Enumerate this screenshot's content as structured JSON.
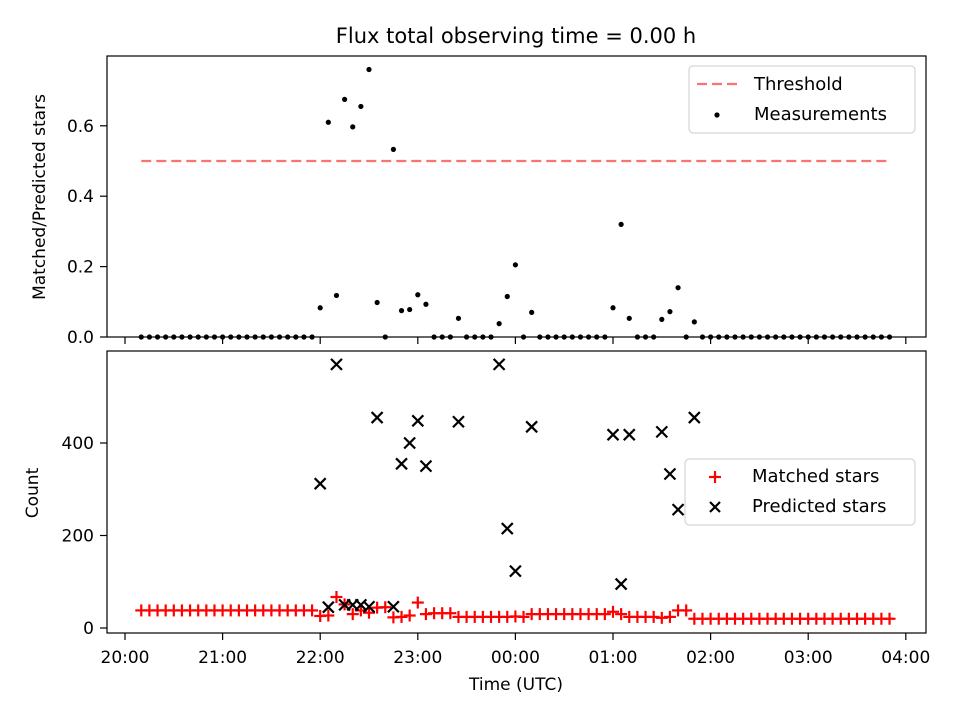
{
  "title": "Flux total observing time = 0.00 h",
  "chart_data": [
    {
      "type": "scatter",
      "ylabel": "Matched/Predicted stars",
      "xlabel": "",
      "xlim": [
        "20:00",
        "04:00"
      ],
      "ylim": [
        0,
        0.8
      ],
      "yticks": [
        0.0,
        0.2,
        0.4,
        0.6
      ],
      "ytick_labels": [
        "0.0",
        "0.2",
        "0.4",
        "0.6"
      ],
      "legend": "top-right",
      "threshold": {
        "name": "Threshold",
        "value": 0.5,
        "x_start": "20:10",
        "x_end": "03:50",
        "color": "#ff7070",
        "style": "dashed"
      },
      "measurements": {
        "name": "Measurements",
        "color": "#000000",
        "points": [
          [
            "20:10",
            0
          ],
          [
            "20:15",
            0
          ],
          [
            "20:20",
            0
          ],
          [
            "20:25",
            0
          ],
          [
            "20:30",
            0
          ],
          [
            "20:35",
            0
          ],
          [
            "20:40",
            0
          ],
          [
            "20:45",
            0
          ],
          [
            "20:50",
            0
          ],
          [
            "20:55",
            0
          ],
          [
            "21:00",
            0
          ],
          [
            "21:05",
            0
          ],
          [
            "21:10",
            0
          ],
          [
            "21:15",
            0
          ],
          [
            "21:20",
            0
          ],
          [
            "21:25",
            0
          ],
          [
            "21:30",
            0
          ],
          [
            "21:35",
            0
          ],
          [
            "21:40",
            0
          ],
          [
            "21:45",
            0
          ],
          [
            "21:50",
            0
          ],
          [
            "21:55",
            0
          ],
          [
            "22:00",
            0.083
          ],
          [
            "22:05",
            0.61
          ],
          [
            "22:10",
            0.118
          ],
          [
            "22:15",
            0.675
          ],
          [
            "22:20",
            0.597
          ],
          [
            "22:25",
            0.655
          ],
          [
            "22:30",
            0.76
          ],
          [
            "22:35",
            0.098
          ],
          [
            "22:40",
            0
          ],
          [
            "22:45",
            0.533
          ],
          [
            "22:50",
            0.075
          ],
          [
            "22:55",
            0.078
          ],
          [
            "23:00",
            0.12
          ],
          [
            "23:05",
            0.093
          ],
          [
            "23:10",
            0
          ],
          [
            "23:15",
            0
          ],
          [
            "23:20",
            0
          ],
          [
            "23:25",
            0.053
          ],
          [
            "23:30",
            0
          ],
          [
            "23:35",
            0
          ],
          [
            "23:40",
            0
          ],
          [
            "23:45",
            0
          ],
          [
            "23:50",
            0.038
          ],
          [
            "23:55",
            0.115
          ],
          [
            "00:00",
            0.205
          ],
          [
            "00:05",
            0
          ],
          [
            "00:10",
            0.07
          ],
          [
            "00:15",
            0
          ],
          [
            "00:20",
            0
          ],
          [
            "00:25",
            0
          ],
          [
            "00:30",
            0
          ],
          [
            "00:35",
            0
          ],
          [
            "00:40",
            0
          ],
          [
            "00:45",
            0
          ],
          [
            "00:50",
            0
          ],
          [
            "00:55",
            0
          ],
          [
            "01:00",
            0.083
          ],
          [
            "01:05",
            0.32
          ],
          [
            "01:10",
            0.053
          ],
          [
            "01:15",
            0
          ],
          [
            "01:20",
            0
          ],
          [
            "01:25",
            0
          ],
          [
            "01:30",
            0.05
          ],
          [
            "01:35",
            0.072
          ],
          [
            "01:40",
            0.14
          ],
          [
            "01:45",
            0
          ],
          [
            "01:50",
            0.043
          ],
          [
            "01:55",
            0
          ],
          [
            "02:00",
            0
          ],
          [
            "02:05",
            0
          ],
          [
            "02:10",
            0
          ],
          [
            "02:15",
            0
          ],
          [
            "02:20",
            0
          ],
          [
            "02:25",
            0
          ],
          [
            "02:30",
            0
          ],
          [
            "02:35",
            0
          ],
          [
            "02:40",
            0
          ],
          [
            "02:45",
            0
          ],
          [
            "02:50",
            0
          ],
          [
            "02:55",
            0
          ],
          [
            "03:00",
            0
          ],
          [
            "03:05",
            0
          ],
          [
            "03:10",
            0
          ],
          [
            "03:15",
            0
          ],
          [
            "03:20",
            0
          ],
          [
            "03:25",
            0
          ],
          [
            "03:30",
            0
          ],
          [
            "03:35",
            0
          ],
          [
            "03:40",
            0
          ],
          [
            "03:45",
            0
          ],
          [
            "03:50",
            0
          ]
        ]
      }
    },
    {
      "type": "scatter",
      "ylabel": "Count",
      "xlabel": "Time (UTC)",
      "xlim": [
        "20:00",
        "04:00"
      ],
      "ylim": [
        0,
        580
      ],
      "yticks": [
        0,
        200,
        400
      ],
      "ytick_labels": [
        "0",
        "200",
        "400"
      ],
      "xticks": [
        "20:00",
        "21:00",
        "22:00",
        "23:00",
        "00:00",
        "01:00",
        "02:00",
        "03:00",
        "04:00"
      ],
      "legend": "center-right",
      "series": [
        {
          "name": "Matched stars",
          "marker": "plus",
          "color": "#ff0000",
          "points": [
            [
              "20:10",
              38
            ],
            [
              "20:15",
              38
            ],
            [
              "20:20",
              38
            ],
            [
              "20:25",
              38
            ],
            [
              "20:30",
              38
            ],
            [
              "20:35",
              38
            ],
            [
              "20:40",
              38
            ],
            [
              "20:45",
              38
            ],
            [
              "20:50",
              38
            ],
            [
              "20:55",
              38
            ],
            [
              "21:00",
              38
            ],
            [
              "21:05",
              38
            ],
            [
              "21:10",
              38
            ],
            [
              "21:15",
              38
            ],
            [
              "21:20",
              38
            ],
            [
              "21:25",
              38
            ],
            [
              "21:30",
              38
            ],
            [
              "21:35",
              38
            ],
            [
              "21:40",
              38
            ],
            [
              "21:45",
              38
            ],
            [
              "21:50",
              38
            ],
            [
              "21:55",
              38
            ],
            [
              "22:00",
              26
            ],
            [
              "22:05",
              27
            ],
            [
              "22:10",
              67
            ],
            [
              "22:15",
              51
            ],
            [
              "22:20",
              30
            ],
            [
              "22:25",
              38
            ],
            [
              "22:30",
              33
            ],
            [
              "22:35",
              44
            ],
            [
              "22:40",
              45
            ],
            [
              "22:45",
              23
            ],
            [
              "22:50",
              24
            ],
            [
              "22:55",
              27
            ],
            [
              "23:00",
              55
            ],
            [
              "23:05",
              30
            ],
            [
              "23:10",
              32
            ],
            [
              "23:15",
              32
            ],
            [
              "23:20",
              32
            ],
            [
              "23:25",
              24
            ],
            [
              "23:30",
              24
            ],
            [
              "23:35",
              24
            ],
            [
              "23:40",
              24
            ],
            [
              "23:45",
              24
            ],
            [
              "23:50",
              24
            ],
            [
              "23:55",
              24
            ],
            [
              "00:00",
              25
            ],
            [
              "00:05",
              24
            ],
            [
              "00:10",
              30
            ],
            [
              "00:15",
              30
            ],
            [
              "00:20",
              30
            ],
            [
              "00:25",
              30
            ],
            [
              "00:30",
              30
            ],
            [
              "00:35",
              30
            ],
            [
              "00:40",
              30
            ],
            [
              "00:45",
              30
            ],
            [
              "00:50",
              30
            ],
            [
              "00:55",
              30
            ],
            [
              "01:00",
              35
            ],
            [
              "01:05",
              30
            ],
            [
              "01:10",
              24
            ],
            [
              "01:15",
              24
            ],
            [
              "01:20",
              24
            ],
            [
              "01:25",
              24
            ],
            [
              "01:30",
              22
            ],
            [
              "01:35",
              24
            ],
            [
              "01:40",
              38
            ],
            [
              "01:45",
              38
            ],
            [
              "01:50",
              20
            ],
            [
              "01:55",
              20
            ],
            [
              "02:00",
              20
            ],
            [
              "02:05",
              20
            ],
            [
              "02:10",
              20
            ],
            [
              "02:15",
              20
            ],
            [
              "02:20",
              20
            ],
            [
              "02:25",
              20
            ],
            [
              "02:30",
              20
            ],
            [
              "02:35",
              20
            ],
            [
              "02:40",
              20
            ],
            [
              "02:45",
              20
            ],
            [
              "02:50",
              20
            ],
            [
              "02:55",
              20
            ],
            [
              "03:00",
              20
            ],
            [
              "03:05",
              20
            ],
            [
              "03:10",
              20
            ],
            [
              "03:15",
              20
            ],
            [
              "03:20",
              20
            ],
            [
              "03:25",
              20
            ],
            [
              "03:30",
              20
            ],
            [
              "03:35",
              20
            ],
            [
              "03:40",
              20
            ],
            [
              "03:45",
              20
            ],
            [
              "03:50",
              20
            ]
          ]
        },
        {
          "name": "Predicted stars",
          "marker": "x",
          "color": "#000000",
          "points": [
            [
              "22:00",
              312
            ],
            [
              "22:05",
              45
            ],
            [
              "22:10",
              570
            ],
            [
              "22:15",
              50
            ],
            [
              "22:20",
              50
            ],
            [
              "22:25",
              50
            ],
            [
              "22:30",
              46
            ],
            [
              "22:35",
              455
            ],
            [
              "22:45",
              46
            ],
            [
              "22:50",
              355
            ],
            [
              "22:55",
              400
            ],
            [
              "23:00",
              448
            ],
            [
              "23:05",
              350
            ],
            [
              "23:25",
              446
            ],
            [
              "23:50",
              570
            ],
            [
              "23:55",
              215
            ],
            [
              "00:00",
              123
            ],
            [
              "00:10",
              435
            ],
            [
              "01:00",
              418
            ],
            [
              "01:05",
              95
            ],
            [
              "01:10",
              418
            ],
            [
              "01:30",
              424
            ],
            [
              "01:35",
              333
            ],
            [
              "01:40",
              256
            ],
            [
              "01:50",
              455
            ]
          ]
        }
      ]
    }
  ]
}
